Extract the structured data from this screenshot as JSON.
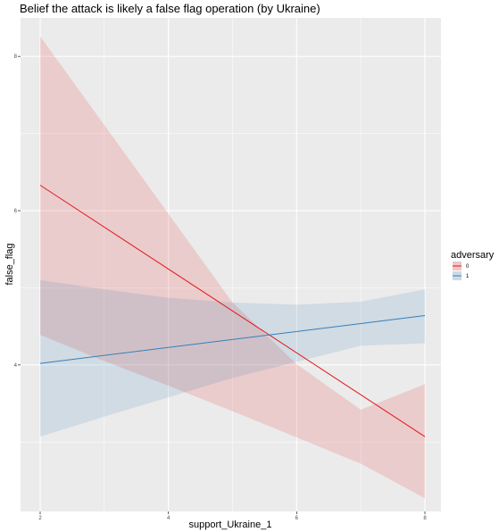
{
  "chart_data": {
    "type": "line",
    "title": "Belief the attack is likely a false flag operation (by Ukraine)",
    "xlabel": "support_Ukraine_1",
    "ylabel": "false_flag",
    "xlim": [
      2,
      8
    ],
    "ylim": [
      2.1,
      8.5
    ],
    "x_ticks": [
      "2",
      "4",
      "6",
      "8"
    ],
    "y_ticks": [
      "4",
      "6",
      "8"
    ],
    "grid": true,
    "legend": {
      "title": "adversary",
      "position": "right"
    },
    "series": [
      {
        "name": "0",
        "color": "#e41a1c",
        "x": [
          2,
          8
        ],
        "y": [
          6.33,
          3.07
        ],
        "band_x": [
          2,
          3,
          4,
          5,
          6,
          7,
          8
        ],
        "band_lower": [
          4.39,
          4.05,
          3.73,
          3.4,
          3.06,
          2.72,
          2.27
        ],
        "band_upper": [
          8.26,
          7.11,
          5.96,
          4.81,
          4.01,
          3.42,
          3.75
        ]
      },
      {
        "name": "1",
        "color": "#377eb8",
        "x": [
          2,
          8
        ],
        "y": [
          4.02,
          4.64
        ],
        "band_x": [
          2,
          3,
          4,
          5,
          6,
          7,
          8
        ],
        "band_lower": [
          3.07,
          3.33,
          3.58,
          3.83,
          4.04,
          4.25,
          4.28
        ],
        "band_upper": [
          5.1,
          4.98,
          4.87,
          4.81,
          4.78,
          4.82,
          4.98
        ]
      }
    ]
  }
}
